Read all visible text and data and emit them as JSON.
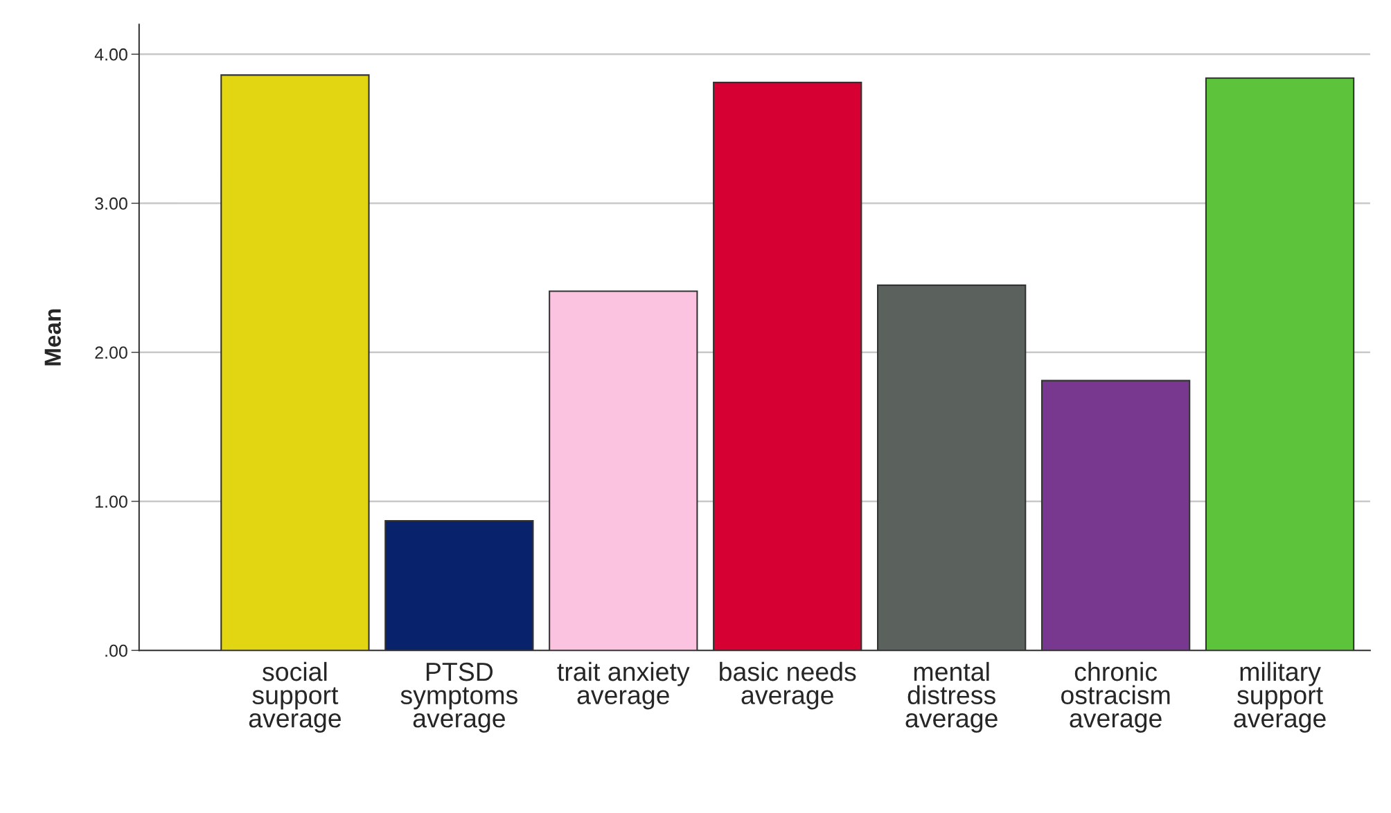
{
  "chart_data": {
    "type": "bar",
    "ylabel": "Mean",
    "categories": [
      "social\nsupport\naverage",
      "PTSD\nsymptoms\naverage",
      "trait anxiety\naverage",
      "basic needs\naverage",
      "mental\ndistress\naverage",
      "chronic\nostracism\naverage",
      "military\nsupport\naverage"
    ],
    "values": [
      3.86,
      0.87,
      2.41,
      3.81,
      2.45,
      1.81,
      3.84
    ],
    "colors": [
      "#e2d511",
      "#08236c",
      "#fcc3e0",
      "#d60032",
      "#5b625d",
      "#783890",
      "#5cc33a"
    ],
    "ylim": [
      0,
      4.2
    ],
    "yticks": [
      {
        "value": 0,
        "label": ".00"
      },
      {
        "value": 1,
        "label": "1.00"
      },
      {
        "value": 2,
        "label": "2.00"
      },
      {
        "value": 3,
        "label": "3.00"
      },
      {
        "value": 4,
        "label": "4.00"
      }
    ],
    "grid": "y"
  }
}
